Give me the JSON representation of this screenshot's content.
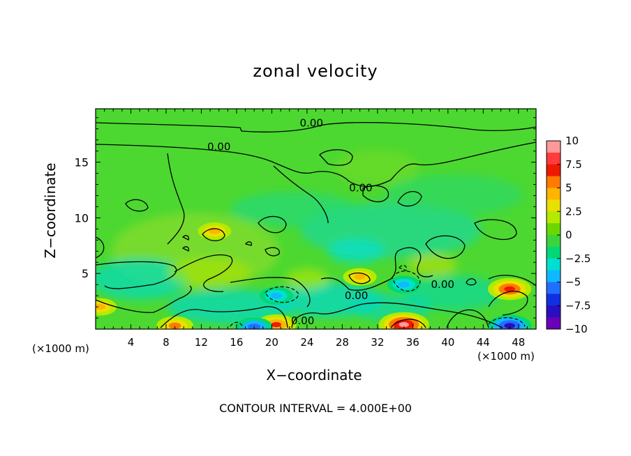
{
  "chart_data": {
    "type": "heatmap",
    "title": "zonal velocity",
    "xlabel": "X−coordinate",
    "ylabel": "Z−coordinate",
    "x_unit": "(×1000 m)",
    "x_ticks": [
      4,
      8,
      12,
      16,
      20,
      24,
      28,
      32,
      36,
      40,
      44,
      48
    ],
    "y_ticks": [
      5,
      10,
      15
    ],
    "xlim": [
      0,
      50
    ],
    "ylim": [
      0,
      19.8
    ],
    "colorbar": {
      "ticks": [
        "10",
        "7.5",
        "5",
        "2.5",
        "0",
        "−2.5",
        "−5",
        "−7.5",
        "−10"
      ],
      "range": [
        -10,
        10
      ],
      "colors": [
        "#ff9999",
        "#ff3b3b",
        "#ee1a00",
        "#ff7a00",
        "#ffb400",
        "#e8e000",
        "#b4ea00",
        "#6ad800",
        "#3cd43c",
        "#00d878",
        "#00e0d0",
        "#10b8ff",
        "#2070ff",
        "#1030e0",
        "#2810c0",
        "#6a00b8"
      ]
    },
    "contour_labels": [
      {
        "text": "0.00",
        "x": 24.5,
        "z": 18.5
      },
      {
        "text": "0.00",
        "x": 14.0,
        "z": 16.4
      },
      {
        "text": "0.00",
        "x": 30.1,
        "z": 12.7
      },
      {
        "text": "0.00",
        "x": 39.4,
        "z": 4.0
      },
      {
        "text": "0.00",
        "x": 29.6,
        "z": 3.0
      },
      {
        "text": "0.00",
        "x": 23.5,
        "z": 0.75
      }
    ],
    "features": [
      {
        "x": 13.5,
        "z": 8.8,
        "value": 5
      },
      {
        "x": 35.0,
        "z": 0.4,
        "value": 10
      },
      {
        "x": 47.0,
        "z": 3.6,
        "value": 8
      },
      {
        "x": 20.5,
        "z": 0.4,
        "value": 7
      },
      {
        "x": 9.0,
        "z": 0.3,
        "value": 6
      },
      {
        "x": 30.0,
        "z": 4.7,
        "value": 5
      },
      {
        "x": 20.5,
        "z": 3.0,
        "value": -5
      },
      {
        "x": 35.0,
        "z": 4.0,
        "value": -5
      },
      {
        "x": 47.0,
        "z": 0.3,
        "value": -8
      },
      {
        "x": 18.0,
        "z": 0.2,
        "value": -6
      },
      {
        "x": 0.5,
        "z": 2.0,
        "value": 5
      }
    ],
    "contour_interval_text": "CONTOUR INTERVAL = 4.000E+00"
  }
}
